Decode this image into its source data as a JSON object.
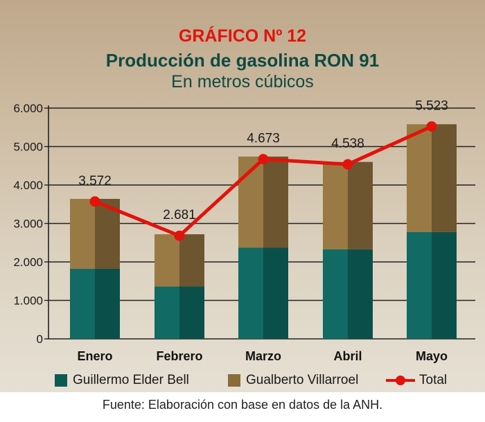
{
  "chart_data": {
    "type": "bar",
    "stacked": true,
    "title": "GRÁFICO Nº 12",
    "subtitle": "Producción de gasolina RON 91",
    "units": "En metros cúbicos",
    "categories": [
      "Enero",
      "Febrero",
      "Marzo",
      "Abril",
      "Mayo"
    ],
    "series": [
      {
        "name": "Guillermo Elder Bell",
        "color": "#0d5a55",
        "values": [
          1820,
          1360,
          2370,
          2330,
          2780
        ]
      },
      {
        "name": "Gualberto Villarroel",
        "color": "#8a6c3a",
        "values": [
          1820,
          1360,
          2370,
          2270,
          2800
        ]
      }
    ],
    "total": {
      "name": "Total",
      "color": "#e3120b",
      "values": [
        3572,
        2681,
        4673,
        4538,
        5523
      ],
      "labels": [
        "3.572",
        "2.681",
        "4.673",
        "4.538",
        "5.523"
      ]
    },
    "y_ticks": [
      0,
      1000,
      2000,
      3000,
      4000,
      5000,
      6000
    ],
    "y_tick_labels": [
      "0",
      "1.000",
      "2.000",
      "3.000",
      "4.000",
      "5.000",
      "6.000"
    ],
    "ylim": [
      0,
      6000
    ],
    "grid": true,
    "legend_position": "bottom"
  },
  "source": "Fuente: Elaboración con base en datos de la ANH."
}
